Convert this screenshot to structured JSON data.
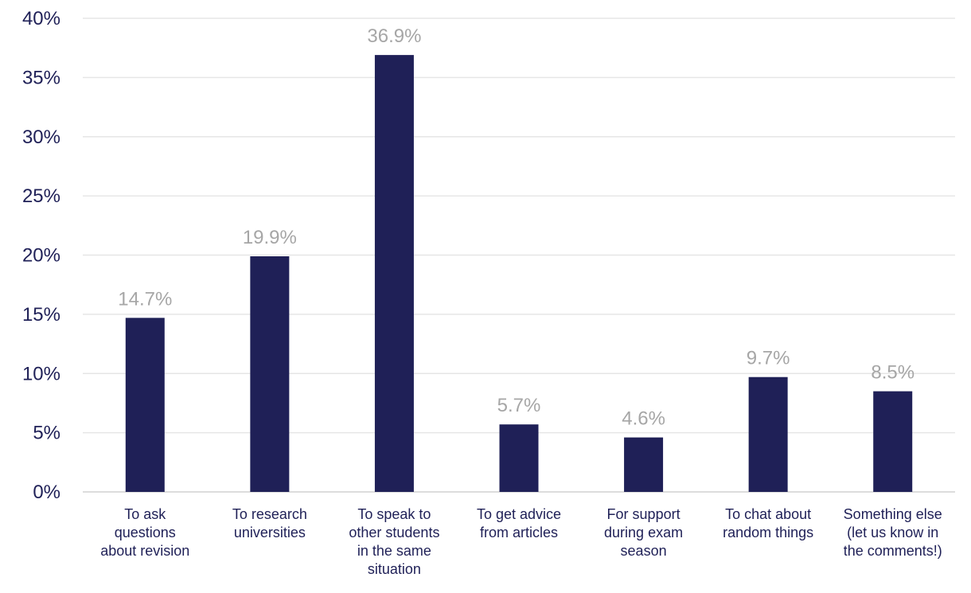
{
  "chart_data": {
    "type": "bar",
    "categories": [
      [
        "To ask",
        "questions",
        "about revision"
      ],
      [
        "To research",
        "universities"
      ],
      [
        "To speak to",
        "other students",
        "in the same",
        "situation"
      ],
      [
        "To get advice",
        "from articles"
      ],
      [
        "For support",
        "during exam",
        "season"
      ],
      [
        "To chat about",
        "random things"
      ],
      [
        "Something else",
        "(let us know in",
        "the comments!)"
      ]
    ],
    "values": [
      14.7,
      19.9,
      36.9,
      5.7,
      4.6,
      9.7,
      8.5
    ],
    "data_labels": [
      "14.7%",
      "19.9%",
      "36.9%",
      "5.7%",
      "4.6%",
      "9.7%",
      "8.5%"
    ],
    "y_ticks": [
      "0%",
      "5%",
      "10%",
      "15%",
      "20%",
      "25%",
      "30%",
      "35%",
      "40%"
    ],
    "ylim": [
      0,
      40
    ],
    "grid": true,
    "colors": {
      "bar": "#1f2057",
      "data_label": "#a6a6a6",
      "tick": "#1f2057",
      "grid": "#e6e6e6"
    }
  }
}
